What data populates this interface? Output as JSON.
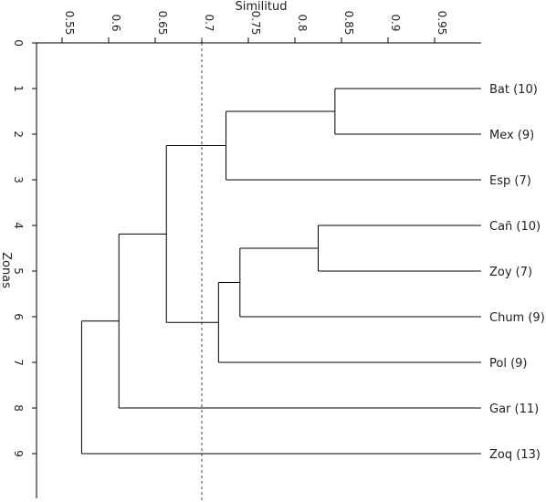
{
  "chart_data": {
    "type": "dendrogram",
    "xlabel": "Similitud",
    "ylabel": "Zonas",
    "x_range": [
      0.535,
      1.0
    ],
    "y_range": [
      0,
      10
    ],
    "x_ticks": [
      {
        "value": 0.55,
        "label": "0.55"
      },
      {
        "value": 0.6,
        "label": "0.6"
      },
      {
        "value": 0.65,
        "label": "0.65"
      },
      {
        "value": 0.7,
        "label": "0.7"
      },
      {
        "value": 0.75,
        "label": "0.75"
      },
      {
        "value": 0.8,
        "label": "0.8"
      },
      {
        "value": 0.85,
        "label": "0.85"
      },
      {
        "value": 0.9,
        "label": "0.9"
      },
      {
        "value": 0.95,
        "label": "0.95"
      }
    ],
    "y_ticks": [
      {
        "value": 0,
        "label": "0"
      },
      {
        "value": 1,
        "label": "1"
      },
      {
        "value": 2,
        "label": "2"
      },
      {
        "value": 3,
        "label": "3"
      },
      {
        "value": 4,
        "label": "4"
      },
      {
        "value": 5,
        "label": "5"
      },
      {
        "value": 6,
        "label": "6"
      },
      {
        "value": 7,
        "label": "7"
      },
      {
        "value": 8,
        "label": "8"
      },
      {
        "value": 9,
        "label": "9"
      }
    ],
    "leaves": [
      {
        "position": 1,
        "label": "Bat (10)"
      },
      {
        "position": 2,
        "label": "Mex (9)"
      },
      {
        "position": 3,
        "label": "Esp (7)"
      },
      {
        "position": 4,
        "label": "Cañ (10)"
      },
      {
        "position": 5,
        "label": "Zoy (7)"
      },
      {
        "position": 6,
        "label": "Chum (9)"
      },
      {
        "position": 7,
        "label": "Pol (9)"
      },
      {
        "position": 8,
        "label": "Gar (11)"
      },
      {
        "position": 9,
        "label": "Zoq (13)"
      }
    ],
    "merges": [
      {
        "left": 1,
        "right": 2,
        "similarity": 0.843,
        "name": "bat-mex"
      },
      {
        "left": 1.5,
        "right": 3,
        "similarity": 0.726,
        "name": "bat-mex-esp"
      },
      {
        "left": 4,
        "right": 5,
        "similarity": 0.825,
        "name": "can-zoy"
      },
      {
        "left": 4.5,
        "right": 6,
        "similarity": 0.741,
        "name": "can-zoy-chum"
      },
      {
        "left": 5.25,
        "right": 7,
        "similarity": 0.718,
        "name": "can-zoy-chum-pol"
      },
      {
        "left": 2.25,
        "right": 6.125,
        "similarity": 0.662,
        "name": "upper-lower"
      },
      {
        "left": 4.1875,
        "right": 8,
        "similarity": 0.611,
        "name": "plus-gar"
      },
      {
        "left": 6.09375,
        "right": 9,
        "similarity": 0.571,
        "name": "plus-zoq"
      }
    ],
    "cutoff": 0.7,
    "root_similarity": 0.535
  }
}
